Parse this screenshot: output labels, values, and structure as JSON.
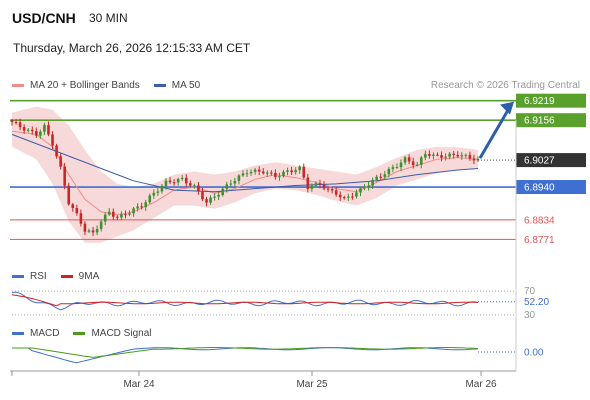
{
  "header": {
    "symbol": "USD/CNH",
    "interval": "30 MIN",
    "datetime": "Thursday, March 26, 2026 12:15:33 AM CET",
    "credit": "Research © 2026 Trading Central"
  },
  "colors": {
    "resistance": "#5aa02c",
    "support": "#3f6fd1",
    "minor": "#e05555",
    "band_fill": "#f8d9d9",
    "ma20": "#f28b8b",
    "ma50": "#3a5da8",
    "candle_up": "#3f8f2f",
    "candle_down": "#c62828",
    "arrow": "#2e5ea8",
    "rsi": "#3f6fd1",
    "rsi_ma": "#d42020",
    "macd": "#3f6fd1",
    "macd_signal": "#4c9a1c"
  },
  "chart_data": [
    {
      "type": "candlestick",
      "legend": [
        {
          "name": "MA 20 + Bollinger Bands",
          "color": "#f28b8b"
        },
        {
          "name": "MA 50",
          "color": "#3a5da8"
        }
      ],
      "x_ticks": [
        "Mar 24",
        "Mar 25",
        "Mar 26"
      ],
      "ylim": [
        6.873,
        6.926
      ],
      "last_price": 6.9027,
      "levels": [
        {
          "value": 6.9219,
          "label": "6.9219",
          "kind": "resistance"
        },
        {
          "value": 6.9156,
          "label": "6.9156",
          "kind": "resistance"
        },
        {
          "value": 6.894,
          "label": "6.8940",
          "kind": "support"
        },
        {
          "value": 6.8834,
          "label": "6.8834",
          "kind": "minor"
        },
        {
          "value": 6.8771,
          "label": "6.8771",
          "kind": "minor"
        }
      ],
      "close_path": [
        [
          0,
          6.915
        ],
        [
          3,
          6.9128
        ],
        [
          6,
          6.911
        ],
        [
          8,
          6.9135
        ],
        [
          10,
          6.908
        ],
        [
          12,
          6.9
        ],
        [
          14,
          6.889
        ],
        [
          16,
          6.885
        ],
        [
          18,
          6.88
        ],
        [
          20,
          6.879
        ],
        [
          22,
          6.883
        ],
        [
          24,
          6.886
        ],
        [
          26,
          6.884
        ],
        [
          29,
          6.886
        ],
        [
          32,
          6.888
        ],
        [
          35,
          6.892
        ],
        [
          38,
          6.8955
        ],
        [
          42,
          6.8965
        ],
        [
          45,
          6.894
        ],
        [
          48,
          6.889
        ],
        [
          51,
          6.892
        ],
        [
          54,
          6.8955
        ],
        [
          58,
          6.899
        ],
        [
          62,
          6.899
        ],
        [
          65,
          6.8975
        ],
        [
          68,
          6.899
        ],
        [
          71,
          6.9
        ],
        [
          73,
          6.894
        ],
        [
          76,
          6.895
        ],
        [
          78,
          6.893
        ],
        [
          80,
          6.892
        ],
        [
          82,
          6.89
        ],
        [
          84,
          6.8915
        ],
        [
          86,
          6.893
        ],
        [
          89,
          6.896
        ],
        [
          92,
          6.8985
        ],
        [
          95,
          6.901
        ],
        [
          97,
          6.903
        ],
        [
          100,
          6.901
        ],
        [
          102,
          6.905
        ],
        [
          104,
          6.904
        ],
        [
          107,
          6.904
        ],
        [
          110,
          6.9045
        ],
        [
          113,
          6.9035
        ],
        [
          115,
          6.9027
        ]
      ],
      "ma20_path": [
        [
          0,
          6.912
        ],
        [
          6,
          6.911
        ],
        [
          10,
          6.907
        ],
        [
          14,
          6.898
        ],
        [
          18,
          6.89
        ],
        [
          22,
          6.886
        ],
        [
          26,
          6.885
        ],
        [
          30,
          6.886
        ],
        [
          35,
          6.889
        ],
        [
          40,
          6.893
        ],
        [
          45,
          6.894
        ],
        [
          50,
          6.892
        ],
        [
          55,
          6.8935
        ],
        [
          60,
          6.8965
        ],
        [
          65,
          6.898
        ],
        [
          70,
          6.897
        ],
        [
          75,
          6.8955
        ],
        [
          80,
          6.8935
        ],
        [
          85,
          6.8925
        ],
        [
          90,
          6.8955
        ],
        [
          95,
          6.899
        ],
        [
          100,
          6.901
        ],
        [
          105,
          6.903
        ],
        [
          110,
          6.9035
        ],
        [
          115,
          6.903
        ]
      ],
      "band_upper": [
        [
          0,
          6.918
        ],
        [
          6,
          6.92
        ],
        [
          10,
          6.919
        ],
        [
          14,
          6.914
        ],
        [
          18,
          6.906
        ],
        [
          22,
          6.899
        ],
        [
          26,
          6.895
        ],
        [
          30,
          6.894
        ],
        [
          35,
          6.895
        ],
        [
          40,
          6.898
        ],
        [
          45,
          6.899
        ],
        [
          50,
          6.898
        ],
        [
          55,
          6.899
        ],
        [
          60,
          6.901
        ],
        [
          65,
          6.902
        ],
        [
          70,
          6.901
        ],
        [
          75,
          6.9
        ],
        [
          80,
          6.899
        ],
        [
          85,
          6.898
        ],
        [
          90,
          6.9005
        ],
        [
          95,
          6.9035
        ],
        [
          100,
          6.906
        ],
        [
          105,
          6.907
        ],
        [
          110,
          6.9068
        ],
        [
          115,
          6.906
        ]
      ],
      "band_lower": [
        [
          0,
          6.907
        ],
        [
          6,
          6.903
        ],
        [
          10,
          6.895
        ],
        [
          14,
          6.883
        ],
        [
          18,
          6.876
        ],
        [
          22,
          6.876
        ],
        [
          26,
          6.878
        ],
        [
          30,
          6.88
        ],
        [
          35,
          6.884
        ],
        [
          40,
          6.888
        ],
        [
          45,
          6.888
        ],
        [
          50,
          6.887
        ],
        [
          55,
          6.889
        ],
        [
          60,
          6.892
        ],
        [
          65,
          6.8935
        ],
        [
          70,
          6.893
        ],
        [
          75,
          6.8915
        ],
        [
          80,
          6.8895
        ],
        [
          85,
          6.888
        ],
        [
          90,
          6.8905
        ],
        [
          95,
          6.8945
        ],
        [
          100,
          6.8965
        ],
        [
          105,
          6.8985
        ],
        [
          110,
          6.8995
        ],
        [
          115,
          6.9
        ]
      ],
      "ma50_path": [
        [
          0,
          6.911
        ],
        [
          10,
          6.906
        ],
        [
          20,
          6.901
        ],
        [
          30,
          6.896
        ],
        [
          40,
          6.893
        ],
        [
          50,
          6.8925
        ],
        [
          60,
          6.8935
        ],
        [
          70,
          6.8945
        ],
        [
          80,
          6.895
        ],
        [
          90,
          6.896
        ],
        [
          100,
          6.898
        ],
        [
          110,
          6.8995
        ],
        [
          115,
          6.9
        ]
      ]
    },
    {
      "type": "line",
      "legend": [
        {
          "name": "RSI",
          "color": "#3f6fd1"
        },
        {
          "name": "9MA",
          "color": "#d42020"
        }
      ],
      "ylim": [
        28,
        72
      ],
      "levels": [
        70,
        30
      ],
      "last_value": 52.2,
      "last_label": "52.20"
    },
    {
      "type": "line",
      "legend": [
        {
          "name": "MACD",
          "color": "#3f6fd1"
        },
        {
          "name": "MACD Signal",
          "color": "#4c9a1c"
        }
      ],
      "zero_label": "0.00"
    }
  ],
  "rsi_labels": {
    "top": "70",
    "bottom": "30",
    "last": "52.20"
  }
}
